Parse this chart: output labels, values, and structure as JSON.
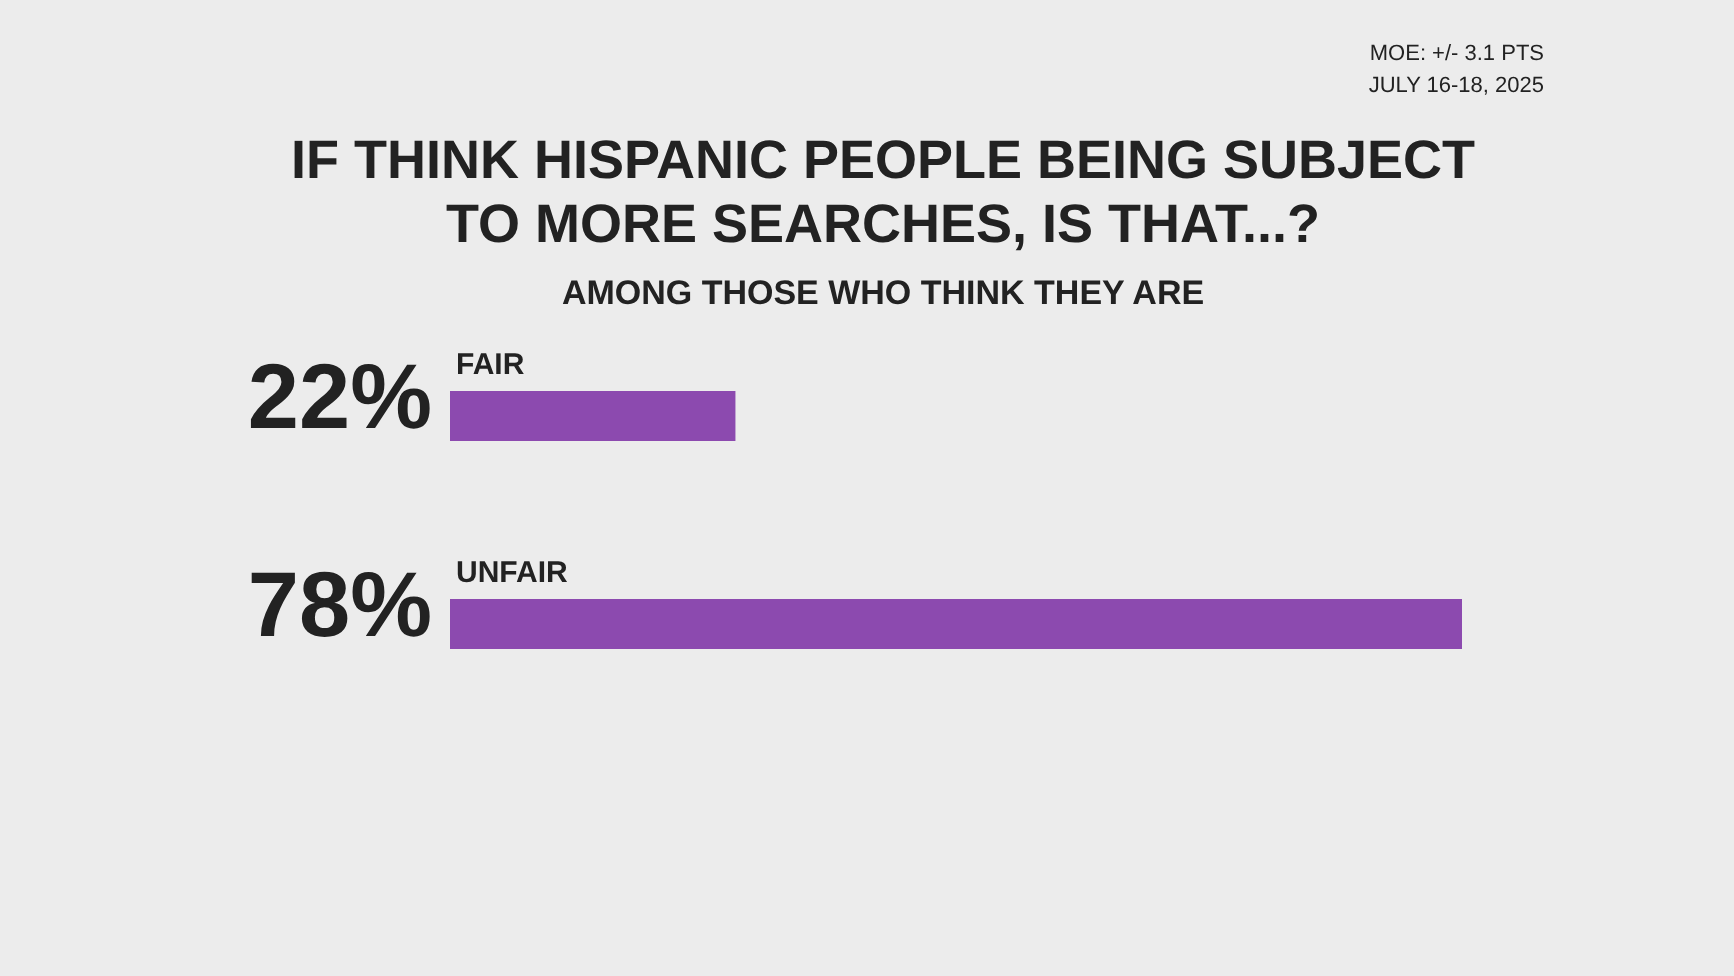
{
  "chart_data": {
    "type": "bar",
    "orientation": "horizontal",
    "title": "IF THINK HISPANIC PEOPLE BEING SUBJECT TO MORE SEARCHES, IS THAT...?",
    "subtitle": "AMONG THOSE WHO THINK THEY ARE",
    "categories": [
      "FAIR",
      "UNFAIR"
    ],
    "values": [
      22,
      78
    ],
    "color": "#8c4aaf",
    "value_labels": [
      "22%",
      "78%"
    ],
    "annotations": [
      "MOE: +/- 3.1 PTS",
      "JULY 16-18, 2025"
    ]
  }
}
